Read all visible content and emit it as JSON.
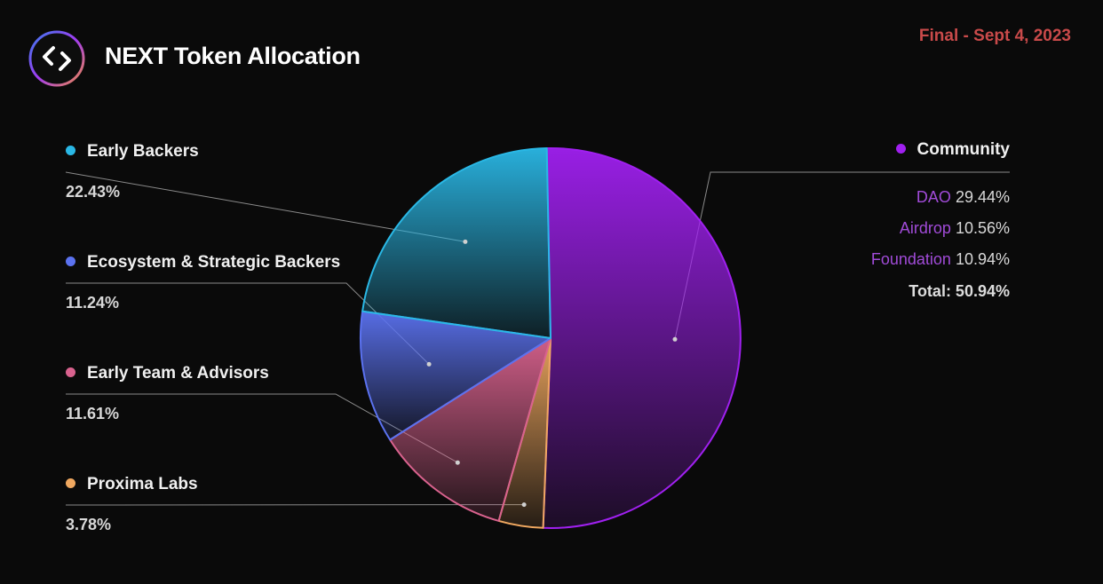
{
  "header": {
    "title": "NEXT Token Allocation",
    "date": "Final - Sept 4, 2023",
    "logo_icon": "connext-logo-icon"
  },
  "colors": {
    "community": "#a020f0",
    "early_backers": "#2ab8e6",
    "ecosystem": "#5b72f0",
    "early_team": "#d9628e",
    "proxima": "#f0a860",
    "date": "#c94a4a"
  },
  "legend_left": [
    {
      "label": "Early Backers",
      "value": "22.43%",
      "color": "#2ab8e6"
    },
    {
      "label": "Ecosystem & Strategic Backers",
      "value": "11.24%",
      "color": "#5b72f0"
    },
    {
      "label": "Early Team & Advisors",
      "value": "11.61%",
      "color": "#d9628e"
    },
    {
      "label": "Proxima Labs",
      "value": "3.78%",
      "color": "#f0a860"
    }
  ],
  "legend_right": {
    "label": "Community",
    "color": "#a020f0",
    "items": [
      {
        "name": "DAO",
        "value": "29.44%"
      },
      {
        "name": "Airdrop",
        "value": "10.56%"
      },
      {
        "name": "Foundation",
        "value": "10.94%"
      }
    ],
    "total": "Total: 50.94%"
  },
  "chart_data": {
    "type": "pie",
    "title": "NEXT Token Allocation",
    "slices": [
      {
        "label": "Community",
        "value": 50.94,
        "color": "#a020f0"
      },
      {
        "label": "Proxima Labs",
        "value": 3.78,
        "color": "#f0a860"
      },
      {
        "label": "Early Team & Advisors",
        "value": 11.61,
        "color": "#d9628e"
      },
      {
        "label": "Ecosystem & Strategic Backers",
        "value": 11.24,
        "color": "#5b72f0"
      },
      {
        "label": "Early Backers",
        "value": 22.43,
        "color": "#2ab8e6"
      }
    ],
    "community_breakdown": [
      {
        "label": "DAO",
        "value": 29.44
      },
      {
        "label": "Airdrop",
        "value": 10.56
      },
      {
        "label": "Foundation",
        "value": 10.94
      }
    ],
    "legend_placement": "left and right"
  }
}
